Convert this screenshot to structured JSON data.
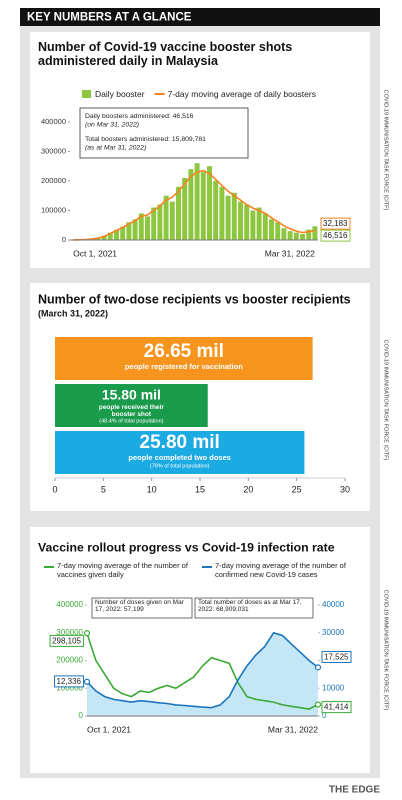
{
  "header": {
    "title": "KEY NUMBERS AT A GLANCE"
  },
  "footer": {
    "brand": "THE EDGE"
  },
  "chart_data": [
    {
      "type": "bar",
      "title": "Number of Covid-19 vaccine booster shots administered daily in Malaysia",
      "source": "COVID-19 IMMUNISATION TASK FORCE (CITF)",
      "annotations": [
        "Daily boosters administered: 46,516",
        "(on Mar 31, 2022)",
        "Total boosters administered: 15,809,781",
        "(as at Mar 31, 2022)"
      ],
      "categories": [
        "Oct 1, 2021",
        null,
        null,
        null,
        null,
        null,
        null,
        null,
        null,
        null,
        null,
        null,
        null,
        null,
        null,
        null,
        null,
        null,
        null,
        null,
        null,
        null,
        null,
        null,
        null,
        null,
        null,
        null,
        null,
        null,
        null,
        null,
        null,
        null,
        null,
        null,
        null,
        null,
        null,
        "Mar 31, 2022"
      ],
      "series": [
        {
          "name": "Daily booster",
          "type": "bar",
          "color": "#8dc63f",
          "last_label": "46,516",
          "values": [
            500,
            1000,
            2000,
            4000,
            8000,
            15000,
            25000,
            35000,
            45000,
            60000,
            70000,
            90000,
            80000,
            110000,
            120000,
            150000,
            130000,
            180000,
            210000,
            240000,
            260000,
            230000,
            250000,
            200000,
            180000,
            150000,
            160000,
            130000,
            120000,
            100000,
            110000,
            90000,
            70000,
            60000,
            40000,
            30000,
            25000,
            20000,
            35000,
            46516
          ]
        },
        {
          "name": "7-day moving average of daily boosters",
          "type": "line",
          "color": "#f58220",
          "last_label": "32,183",
          "values": [
            300,
            800,
            1500,
            3000,
            6000,
            12000,
            22000,
            32000,
            42000,
            55000,
            65000,
            80000,
            85000,
            100000,
            115000,
            135000,
            145000,
            165000,
            190000,
            215000,
            230000,
            235000,
            225000,
            205000,
            185000,
            165000,
            150000,
            135000,
            120000,
            108000,
            100000,
            90000,
            75000,
            62000,
            48000,
            38000,
            30000,
            25000,
            28000,
            32183
          ]
        }
      ],
      "ylim": [
        0,
        430000
      ],
      "yticks": [
        0,
        100000,
        200000,
        300000,
        400000
      ]
    },
    {
      "type": "barh",
      "title": "Number of two-dose recipients vs booster recipients",
      "subtitle": "(March 31, 2022)",
      "source": "COVID-19 IMMUNISATION TASK FORCE (CITF)",
      "series": [
        {
          "name": "people registered for vaccination",
          "color": "#f7941d",
          "values": [
            26.65
          ],
          "value_labels": [
            "26.65 mil"
          ]
        },
        {
          "name": "people received their booster shot",
          "note": "(48.4% of total population)",
          "color": "#1a9a4b",
          "values": [
            15.8
          ],
          "value_labels": [
            "15.80 mil"
          ]
        },
        {
          "name": "people completed two doses",
          "note": "(79% of total population)",
          "color": "#1caae2",
          "values": [
            25.8
          ],
          "value_labels": [
            "25.80 mil"
          ]
        }
      ],
      "xlim": [
        0,
        30
      ],
      "xticks": [
        0,
        5,
        10,
        15,
        20,
        25,
        30
      ]
    },
    {
      "type": "line",
      "title": "Vaccine rollout progress vs Covid-19 infection rate",
      "source": "COVID-19 IMMUNISATION TASK FORCE (CITF)",
      "annotations": [
        "Number of doses given on Mar 17, 2022: 57,199",
        "Total number of doses as at Mar 17, 2022: 68,909,031"
      ],
      "categories": [
        "Oct 1, 2021",
        null,
        null,
        null,
        null,
        null,
        null,
        null,
        null,
        null,
        null,
        null,
        null,
        null,
        null,
        null,
        null,
        null,
        null,
        null,
        null,
        null,
        null,
        null,
        null,
        null,
        "Mar 31, 2022"
      ],
      "series": [
        {
          "name": "7-day moving average of the number of vaccines given daily",
          "color": "#3aaa35",
          "first_label": "298,105",
          "last_label": "41,414",
          "values": [
            298105,
            200000,
            150000,
            100000,
            80000,
            70000,
            90000,
            85000,
            100000,
            110000,
            100000,
            120000,
            140000,
            180000,
            210000,
            200000,
            190000,
            120000,
            70000,
            60000,
            55000,
            50000,
            40000,
            35000,
            30000,
            25000,
            41414
          ]
        },
        {
          "name": "7-day moving average of the number of confirmed new Covid-19 cases",
          "color": "#1b75bc",
          "fill": "#c5e6f7",
          "axis": "y2",
          "first_label": "12,336",
          "last_label": "17,525",
          "values": [
            12336,
            9000,
            7000,
            6000,
            5500,
            5000,
            5500,
            5200,
            4800,
            4500,
            4000,
            3800,
            3500,
            3200,
            3000,
            4000,
            7000,
            13000,
            18000,
            22000,
            25000,
            30000,
            29000,
            26000,
            23000,
            20000,
            17525
          ]
        }
      ],
      "ylim": [
        0,
        400000
      ],
      "yticks": [
        0,
        100000,
        200000,
        300000,
        400000
      ],
      "y2lim": [
        0,
        40000
      ],
      "y2ticks": [
        0,
        10000,
        20000,
        30000,
        40000
      ]
    }
  ]
}
